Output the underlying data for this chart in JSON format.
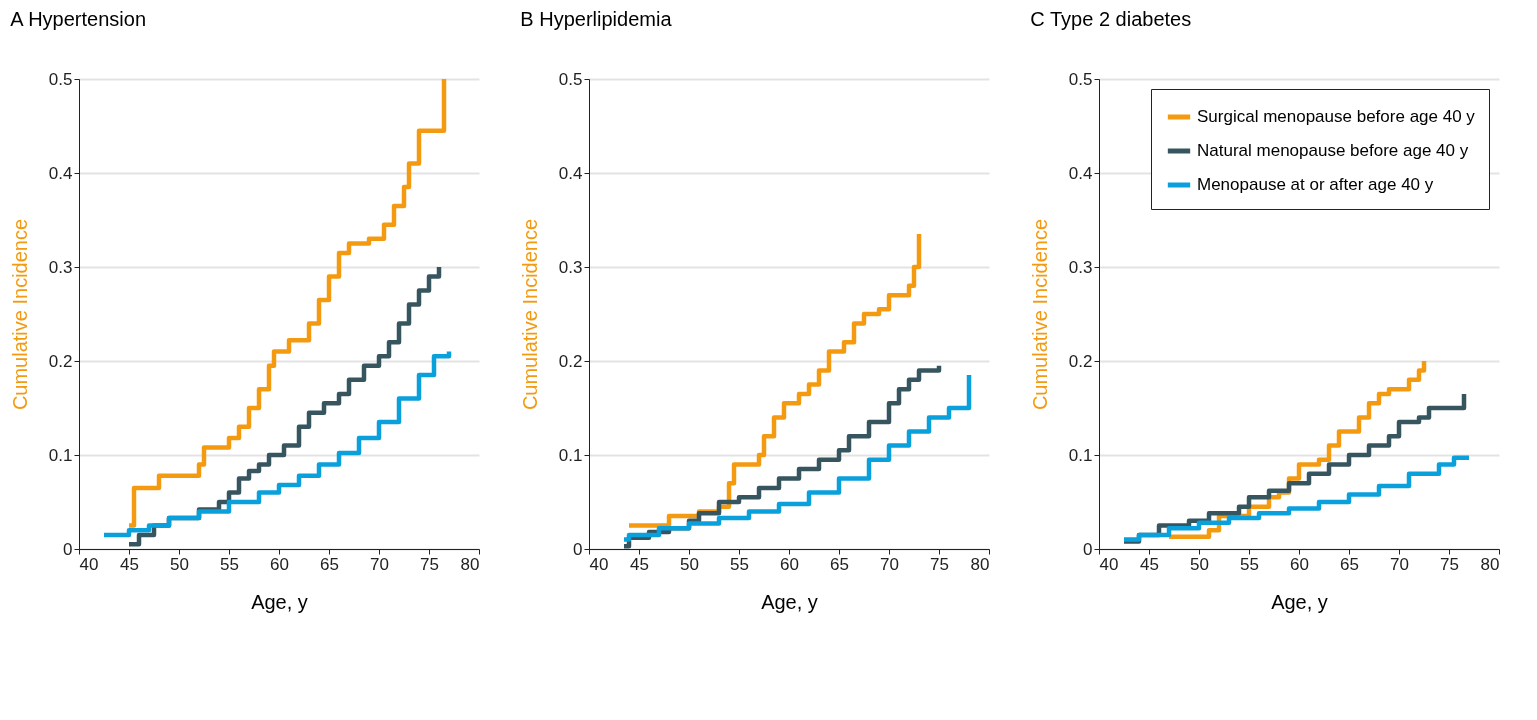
{
  "chart_data": [
    {
      "type": "step",
      "title": "A Hypertension",
      "xlabel": "Age, y",
      "ylabel": "Cumulative Incidence",
      "xlim": [
        40,
        80
      ],
      "xticks": [
        40,
        45,
        50,
        55,
        60,
        65,
        70,
        75,
        80
      ],
      "ylim": [
        0,
        0.5
      ],
      "yticks": [
        0,
        0.1,
        0.2,
        0.3,
        0.4,
        0.5
      ],
      "grid": "y",
      "legend": false,
      "series": [
        {
          "color": "#f39a10",
          "x": [
            45,
            45.5,
            48,
            52,
            52.5,
            55,
            56,
            57,
            58,
            59,
            59.5,
            61,
            63,
            64,
            65,
            66,
            67,
            69,
            70.5,
            71.5,
            72.5,
            73,
            74,
            76,
            76.5
          ],
          "values": [
            0.025,
            0.065,
            0.078,
            0.09,
            0.108,
            0.118,
            0.13,
            0.15,
            0.17,
            0.195,
            0.21,
            0.222,
            0.24,
            0.265,
            0.29,
            0.315,
            0.325,
            0.33,
            0.345,
            0.365,
            0.385,
            0.41,
            0.445,
            0.445,
            0.5
          ]
        },
        {
          "color": "#37555f",
          "x": [
            45,
            46,
            47.5,
            49,
            52,
            54,
            55,
            56,
            57,
            58,
            59,
            60.5,
            62,
            63,
            64.5,
            66,
            67,
            68.5,
            70,
            71,
            72,
            73,
            74,
            75,
            76
          ],
          "values": [
            0.005,
            0.015,
            0.025,
            0.033,
            0.042,
            0.05,
            0.06,
            0.075,
            0.083,
            0.09,
            0.1,
            0.11,
            0.13,
            0.145,
            0.155,
            0.165,
            0.18,
            0.195,
            0.205,
            0.22,
            0.24,
            0.26,
            0.275,
            0.29,
            0.3
          ]
        },
        {
          "color": "#0aa0dc",
          "x": [
            42.5,
            44,
            45,
            47,
            49,
            52,
            55,
            58,
            60,
            62,
            64,
            66,
            68,
            70,
            72,
            74,
            75.5,
            77
          ],
          "values": [
            0.015,
            0.015,
            0.02,
            0.025,
            0.033,
            0.04,
            0.05,
            0.06,
            0.068,
            0.078,
            0.09,
            0.102,
            0.118,
            0.135,
            0.16,
            0.185,
            0.205,
            0.21
          ]
        }
      ]
    },
    {
      "type": "step",
      "title": "B Hyperlipidemia",
      "xlabel": "Age, y",
      "ylabel": "Cumulative Incidence",
      "xlim": [
        40,
        80
      ],
      "xticks": [
        40,
        45,
        50,
        55,
        60,
        65,
        70,
        75,
        80
      ],
      "ylim": [
        0,
        0.5
      ],
      "yticks": [
        0,
        0.1,
        0.2,
        0.3,
        0.4,
        0.5
      ],
      "grid": "y",
      "legend": false,
      "series": [
        {
          "color": "#f39a10",
          "x": [
            44,
            48,
            51,
            53,
            54,
            54.5,
            57,
            57.5,
            58.5,
            59.5,
            61,
            62,
            63,
            64,
            65.5,
            66.5,
            67.5,
            69,
            70,
            72,
            72.5,
            73
          ],
          "values": [
            0.025,
            0.035,
            0.04,
            0.045,
            0.07,
            0.09,
            0.1,
            0.12,
            0.14,
            0.155,
            0.165,
            0.175,
            0.19,
            0.21,
            0.22,
            0.24,
            0.25,
            0.255,
            0.27,
            0.28,
            0.3,
            0.335
          ]
        },
        {
          "color": "#37555f",
          "x": [
            43.5,
            44,
            46,
            48,
            50,
            51,
            53,
            55,
            57,
            59,
            61,
            63,
            65,
            66,
            68,
            70,
            71,
            72,
            73,
            75
          ],
          "values": [
            0.003,
            0.012,
            0.018,
            0.022,
            0.03,
            0.038,
            0.05,
            0.055,
            0.065,
            0.075,
            0.085,
            0.095,
            0.105,
            0.12,
            0.135,
            0.155,
            0.17,
            0.18,
            0.19,
            0.195
          ]
        },
        {
          "color": "#0aa0dc",
          "x": [
            43.5,
            44,
            47,
            50,
            53,
            56,
            59,
            62,
            65,
            68,
            70,
            72,
            74,
            76,
            78,
            78
          ],
          "values": [
            0.01,
            0.015,
            0.022,
            0.027,
            0.033,
            0.04,
            0.048,
            0.06,
            0.075,
            0.095,
            0.11,
            0.125,
            0.14,
            0.15,
            0.155,
            0.185
          ]
        }
      ]
    },
    {
      "type": "step",
      "title": "C Type 2 diabetes",
      "xlabel": "Age, y",
      "ylabel": "Cumulative Incidence",
      "xlim": [
        40,
        80
      ],
      "xticks": [
        40,
        45,
        50,
        55,
        60,
        65,
        70,
        75,
        80
      ],
      "ylim": [
        0,
        0.5
      ],
      "yticks": [
        0,
        0.1,
        0.2,
        0.3,
        0.4,
        0.5
      ],
      "grid": "y",
      "legend": "top right",
      "series": [
        {
          "name": "Surgical menopause before age 40 y",
          "color": "#f39a10",
          "x": [
            47,
            51,
            52,
            55,
            57,
            58,
            59,
            60,
            62,
            63,
            64,
            66,
            67,
            68,
            69,
            71,
            72,
            72.5
          ],
          "values": [
            0.013,
            0.02,
            0.035,
            0.045,
            0.055,
            0.06,
            0.075,
            0.09,
            0.095,
            0.11,
            0.125,
            0.14,
            0.155,
            0.165,
            0.17,
            0.18,
            0.19,
            0.2
          ]
        },
        {
          "name": "Natural menopause before age 40 y",
          "color": "#37555f",
          "x": [
            42.5,
            44,
            46,
            49,
            51,
            54,
            55,
            57,
            59,
            61,
            63,
            65,
            67,
            69,
            70,
            72,
            73,
            76.5,
            76.5
          ],
          "values": [
            0.008,
            0.015,
            0.025,
            0.03,
            0.038,
            0.045,
            0.055,
            0.062,
            0.07,
            0.08,
            0.09,
            0.1,
            0.11,
            0.12,
            0.135,
            0.14,
            0.15,
            0.15,
            0.165
          ]
        },
        {
          "name": "Menopause at or after age 40 y",
          "color": "#0aa0dc",
          "x": [
            42.5,
            44,
            47,
            50,
            53,
            56,
            59,
            62,
            65,
            68,
            71,
            74,
            75.5,
            77
          ],
          "values": [
            0.01,
            0.015,
            0.022,
            0.028,
            0.033,
            0.038,
            0.043,
            0.05,
            0.058,
            0.067,
            0.08,
            0.09,
            0.097,
            0.097
          ]
        }
      ]
    }
  ]
}
